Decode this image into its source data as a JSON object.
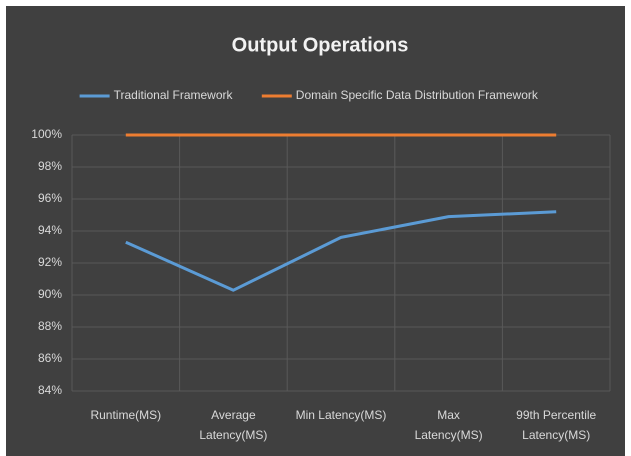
{
  "chart_data": {
    "type": "line",
    "title": "Output Operations",
    "categories": [
      "Runtime(MS)",
      "Average\nLatency(MS)",
      "Min Latency(MS)",
      "Max\nLatency(MS)",
      "99th Percentile\nLatency(MS)"
    ],
    "series": [
      {
        "name": "Traditional Framework",
        "color": "#5b9bd5",
        "values": [
          93.3,
          90.3,
          93.6,
          94.9,
          95.2
        ]
      },
      {
        "name": "Domain Specific Data Distribution Framework",
        "color": "#ed7d31",
        "values": [
          100,
          100,
          100,
          100,
          100
        ]
      }
    ],
    "ylim": [
      84,
      100
    ],
    "yticks": [
      {
        "value": 84,
        "label": "84%"
      },
      {
        "value": 86,
        "label": "86%"
      },
      {
        "value": 88,
        "label": "88%"
      },
      {
        "value": 90,
        "label": "90%"
      },
      {
        "value": 92,
        "label": "92%"
      },
      {
        "value": 94,
        "label": "94%"
      },
      {
        "value": 96,
        "label": "96%"
      },
      {
        "value": 98,
        "label": "98%"
      },
      {
        "value": 100,
        "label": "100%"
      }
    ],
    "grid": true,
    "legend": "top"
  }
}
